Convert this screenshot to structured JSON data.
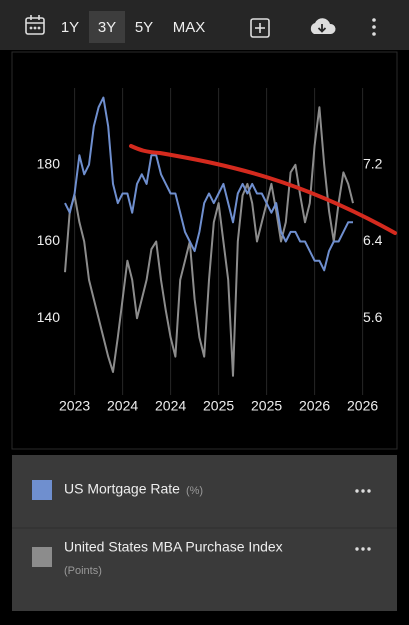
{
  "toolbar": {
    "ranges": [
      "1Y",
      "3Y",
      "5Y",
      "MAX"
    ],
    "selected": 1
  },
  "chart_data": {
    "type": "line",
    "categories": [
      null,
      null,
      "2023",
      null,
      null,
      null,
      null,
      null,
      null,
      null,
      null,
      null,
      "2024",
      null,
      null,
      null,
      null,
      null,
      null,
      null,
      null,
      null,
      "2024",
      null,
      null,
      null,
      null,
      null,
      null,
      null,
      null,
      null,
      "2025",
      null,
      null,
      null,
      null,
      null,
      null,
      null,
      null,
      null,
      "2025",
      null,
      null,
      null,
      null,
      null,
      null,
      null,
      null,
      null,
      "2026",
      null,
      null,
      null,
      null,
      null,
      null,
      null,
      null,
      null,
      "2026"
    ],
    "series": [
      {
        "name": "US Mortgage Rate",
        "unit": "(%)",
        "color": "#6f8fcf",
        "axis": "y2",
        "values": [
          6.8,
          6.7,
          6.9,
          7.3,
          7.1,
          7.2,
          7.6,
          7.8,
          7.9,
          7.6,
          7.0,
          6.8,
          6.9,
          6.9,
          6.7,
          7.0,
          7.1,
          7.0,
          7.3,
          7.3,
          7.1,
          7.0,
          6.9,
          6.9,
          6.7,
          6.5,
          6.4,
          6.3,
          6.5,
          6.8,
          6.9,
          6.8,
          6.9,
          7.0,
          6.8,
          6.6,
          6.9,
          7.0,
          6.9,
          7.0,
          6.9,
          6.9,
          6.8,
          6.7,
          6.8,
          6.5,
          6.4,
          6.5,
          6.5,
          6.4,
          6.4,
          6.3,
          6.2,
          6.2,
          6.1,
          6.3,
          6.4,
          6.4,
          6.5,
          6.6,
          6.6,
          null,
          null
        ]
      },
      {
        "name": "United States MBA Purchase Index",
        "unit": "(Points)",
        "color": "#8c8c8c",
        "values": [
          152,
          168,
          172,
          165,
          160,
          150,
          145,
          140,
          135,
          130,
          126,
          135,
          145,
          155,
          150,
          140,
          145,
          150,
          158,
          160,
          150,
          142,
          135,
          130,
          150,
          155,
          160,
          145,
          135,
          130,
          150,
          165,
          170,
          160,
          150,
          125,
          160,
          172,
          175,
          170,
          160,
          165,
          170,
          175,
          168,
          160,
          165,
          178,
          180,
          172,
          165,
          170,
          185,
          195,
          180,
          168,
          160,
          170,
          178,
          175,
          170,
          null,
          null
        ]
      }
    ],
    "ylim": [
      120,
      200
    ],
    "yticks": [
      140,
      160,
      180
    ],
    "y2lim": [
      4.8,
      8.0
    ],
    "y2ticks": [
      5.6,
      6.4,
      7.2
    ],
    "grid": true
  }
}
